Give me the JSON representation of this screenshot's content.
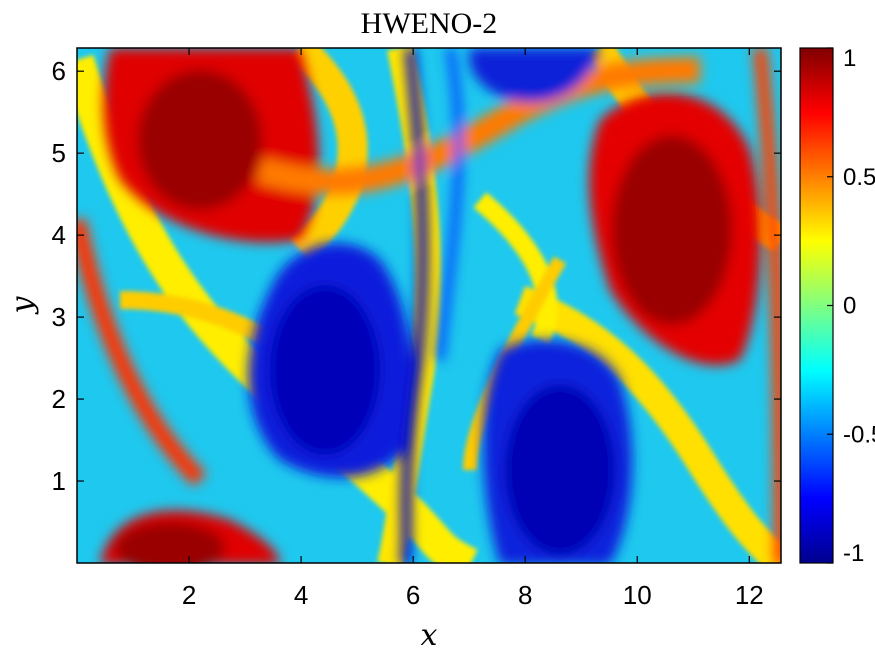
{
  "chart_data": {
    "type": "heatmap",
    "title": "HWENO-2",
    "xlabel": "x",
    "ylabel": "y",
    "xlim": [
      0,
      12.566
    ],
    "ylim": [
      0,
      6.283
    ],
    "x_ticks": [
      "2",
      "4",
      "6",
      "8",
      "10",
      "12"
    ],
    "y_ticks": [
      "1",
      "2",
      "3",
      "4",
      "5",
      "6"
    ],
    "colorbar": {
      "colormap": "jet",
      "range": [
        -1,
        1
      ],
      "ticks": [
        "1",
        "0.5",
        "0",
        "-0.5",
        "-1"
      ],
      "tick_values": [
        1,
        0.5,
        0,
        -0.5,
        -1
      ]
    },
    "features": [
      {
        "value": 1,
        "x": 2.1,
        "y": 4.9
      },
      {
        "value": -1,
        "x": 4.2,
        "y": 2.6
      },
      {
        "value": 1,
        "x": 10.6,
        "y": 4.2
      },
      {
        "value": -1,
        "x": 8.7,
        "y": 1.4
      },
      {
        "value": -1,
        "x": 8.2,
        "y": 6.0
      },
      {
        "value": 1,
        "x": 1.6,
        "y": 0.3
      }
    ]
  },
  "colors": {
    "colormap_stops": [
      "#00008f",
      "#0000ff",
      "#00ffff",
      "#ffff00",
      "#ff0000",
      "#800000"
    ],
    "axes": "#000000",
    "background": "#ffffff"
  }
}
